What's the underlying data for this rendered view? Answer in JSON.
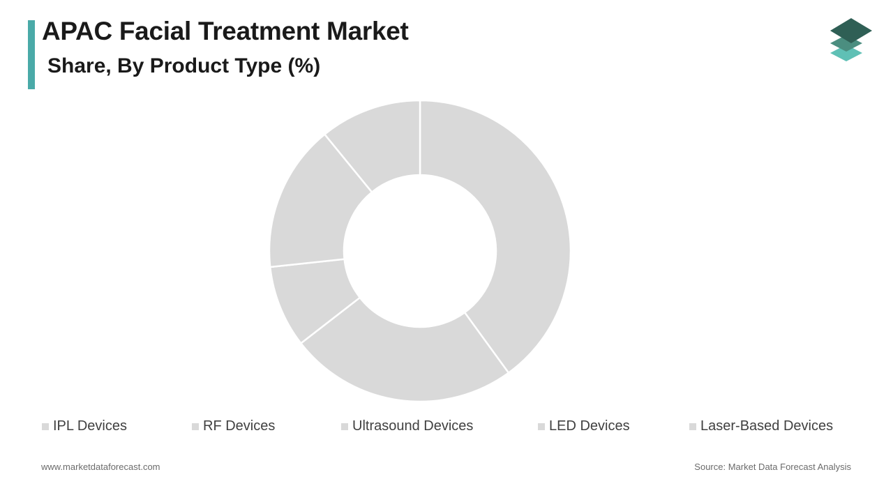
{
  "header": {
    "title": "APAC Facial Treatment Market",
    "subtitle": "Share, By Product Type (%)",
    "accent_color": "#4aaaa8"
  },
  "logo": {
    "icon": "stacked-layers-logo",
    "colors": [
      "#2f5f55",
      "#4b8e80",
      "#5fc0b5"
    ]
  },
  "chart_data": {
    "type": "pie",
    "donut": true,
    "categories": [
      "IPL Devices",
      "RF Devices",
      "Ultrasound Devices",
      "LED Devices",
      "Laser-Based Devices"
    ],
    "values": [
      40.0,
      24.5,
      8.8,
      15.8,
      10.9
    ],
    "unit": "%",
    "slice_color": "#d9d9d9",
    "separator_color": "#ffffff",
    "legend_position": "bottom"
  },
  "footer": {
    "website": "www.marketdataforecast.com",
    "source": "Source: Market Data Forecast Analysis"
  }
}
